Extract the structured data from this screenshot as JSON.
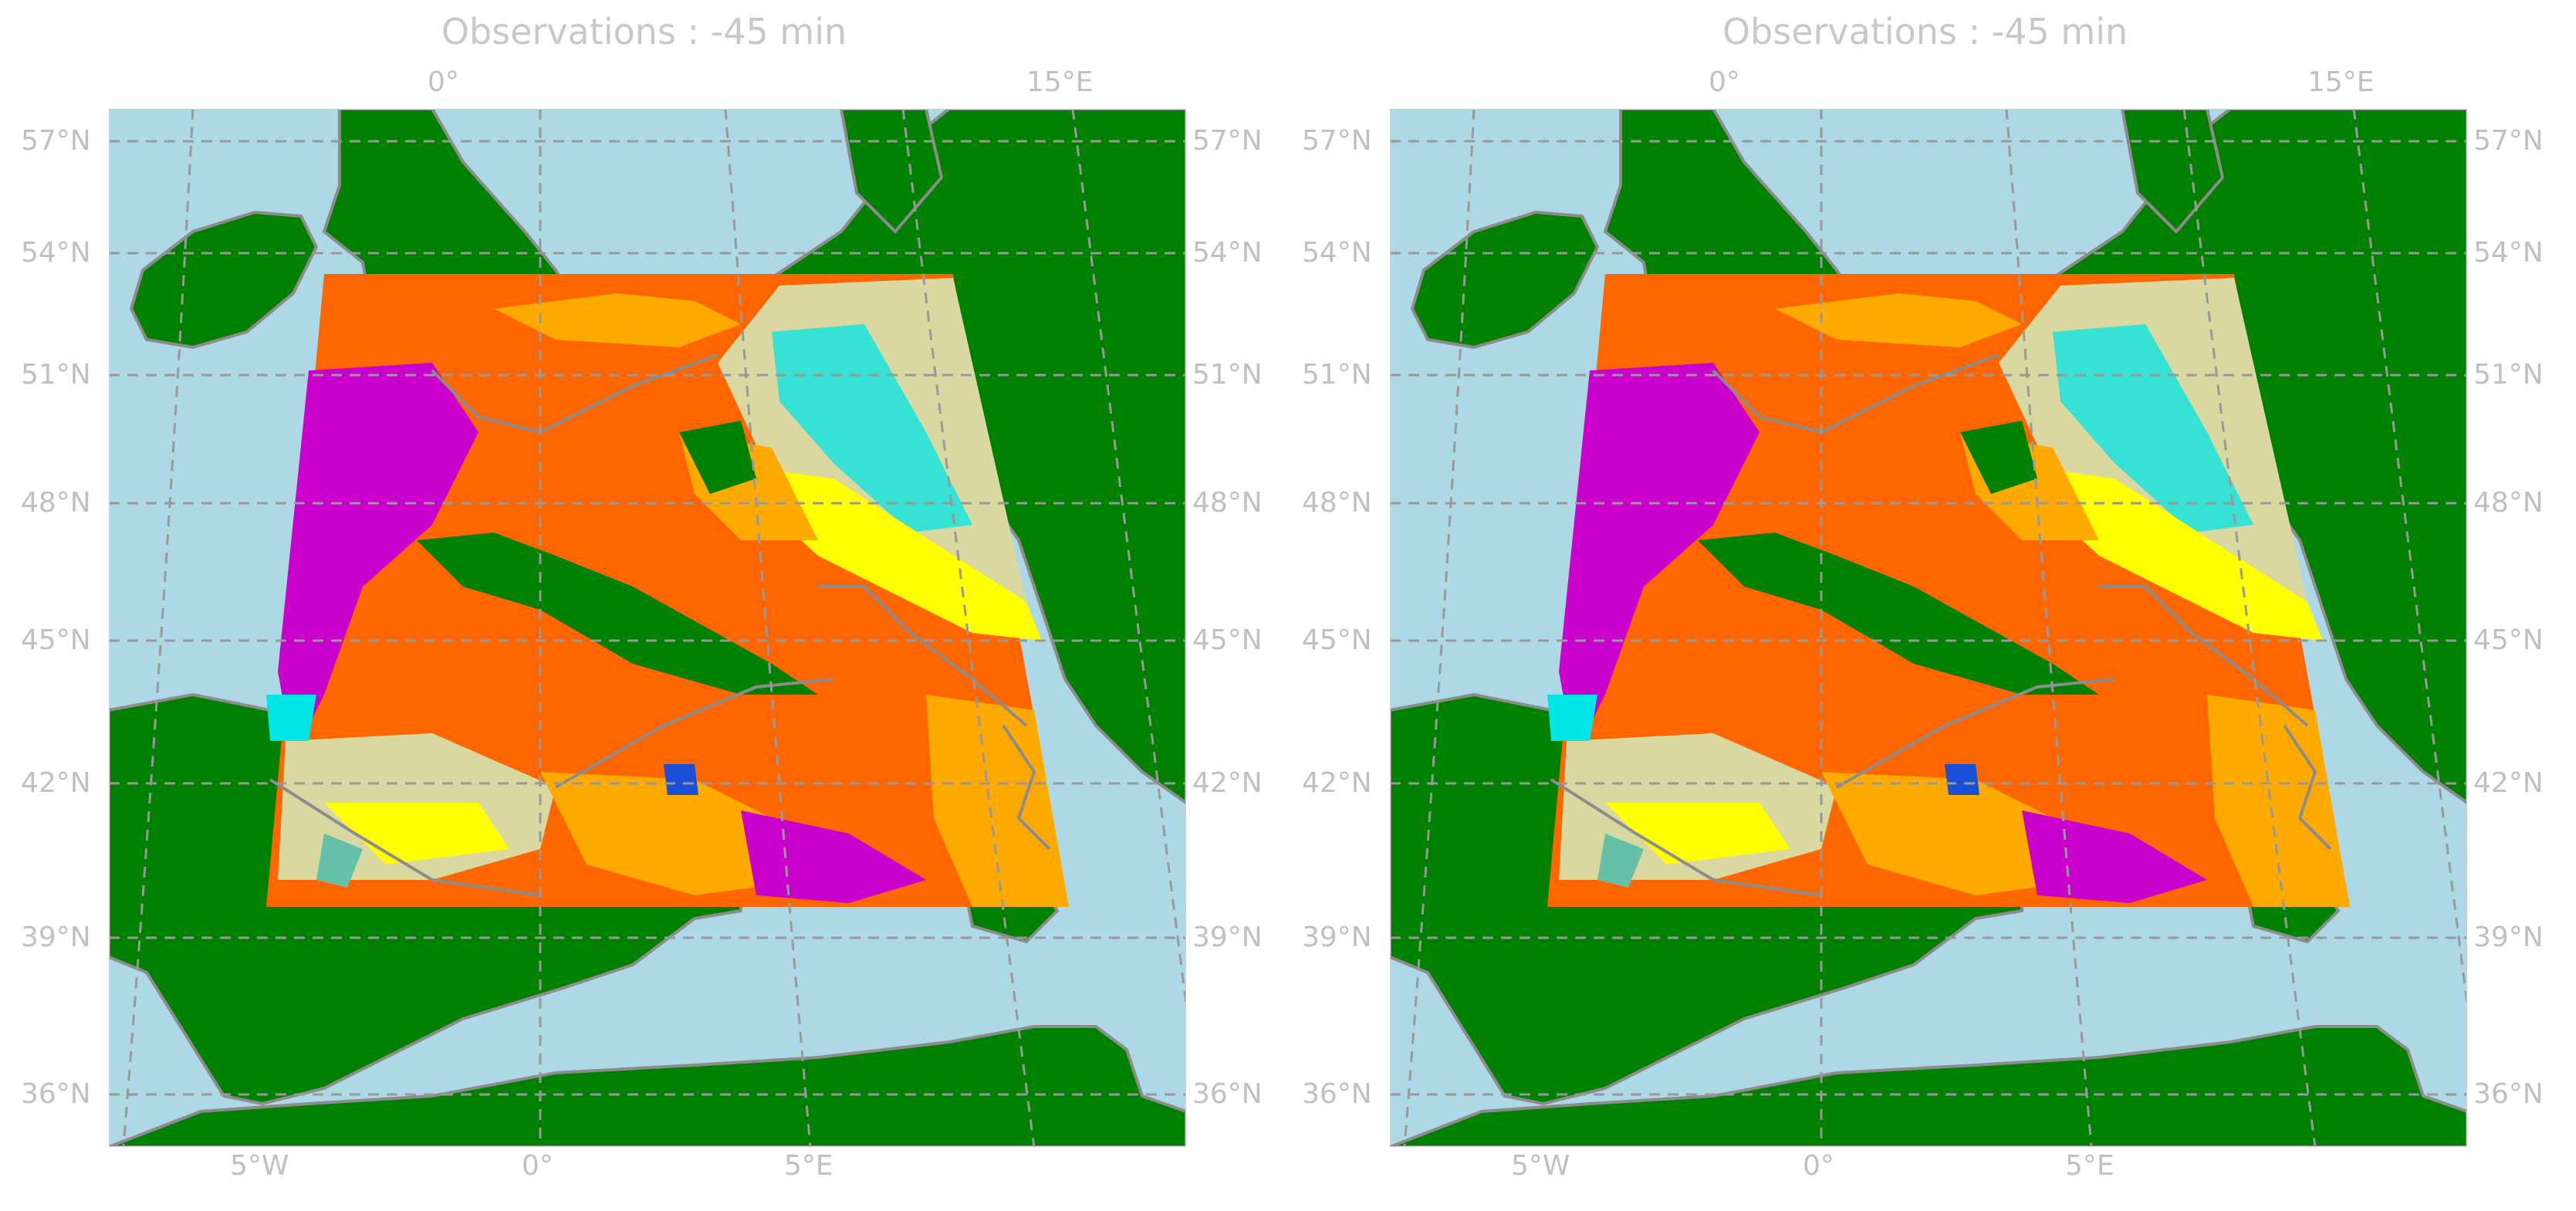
{
  "colors": {
    "sea": "#add8e6",
    "land": "#008000",
    "coast": "#8c8c8c",
    "grid": "#999999",
    "label_text": "#c0c0c0",
    "cloud_classes": [
      "#ff6600",
      "#ffaa00",
      "#ffff00",
      "#d8d8a0",
      "#cc00cc",
      "#00e5e5",
      "#66c0a8",
      "#1a4fd6",
      "#a0a0a0"
    ]
  },
  "panels": [
    {
      "title": "Observations : -45 min",
      "top_labels": [
        "0°",
        "15°E"
      ],
      "bottom_labels": [
        "5°W",
        "0°",
        "5°E"
      ],
      "left_labels": [
        "57°N",
        "54°N",
        "51°N",
        "48°N",
        "45°N",
        "42°N",
        "39°N",
        "36°N"
      ],
      "right_labels": [
        "57°N",
        "54°N",
        "51°N",
        "48°N",
        "45°N",
        "42°N",
        "39°N",
        "36°N"
      ]
    },
    {
      "title": "Observations : -45 min",
      "top_labels": [
        "0°",
        "15°E"
      ],
      "bottom_labels": [
        "5°W",
        "0°",
        "5°E"
      ],
      "left_labels": [
        "57°N",
        "54°N",
        "51°N",
        "48°N",
        "45°N",
        "42°N",
        "39°N",
        "36°N"
      ],
      "right_labels": [
        "57°N",
        "54°N",
        "51°N",
        "48°N",
        "45°N",
        "42°N",
        "39°N",
        "36°N"
      ]
    }
  ]
}
